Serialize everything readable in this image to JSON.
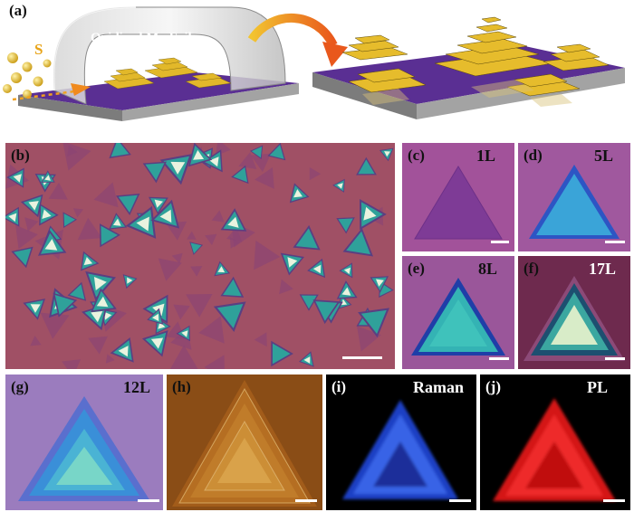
{
  "figure": {
    "panel_a": {
      "label": "(a)",
      "sulfur_label": "S",
      "foil_label": "Oxidized Mo Foil"
    },
    "panel_b": {
      "label": "(b)"
    },
    "panel_c": {
      "label": "(c)",
      "layer_tag": "1L"
    },
    "panel_d": {
      "label": "(d)",
      "layer_tag": "5L"
    },
    "panel_e": {
      "label": "(e)",
      "layer_tag": "8L"
    },
    "panel_f": {
      "label": "(f)",
      "layer_tag": "17L"
    },
    "panel_g": {
      "label": "(g)",
      "layer_tag": "12L"
    },
    "panel_h": {
      "label": "(h)"
    },
    "panel_i": {
      "label": "(i)",
      "mode_tag": "Raman"
    },
    "panel_j": {
      "label": "(j)",
      "mode_tag": "PL"
    }
  },
  "colors": {
    "substrate_purple": "#5a2f93",
    "substrate_gray": "#9a9a9a",
    "sulfur_yellow": "#e8c22a",
    "arrow_orange": "#f08a1e",
    "optical_bg": "#a05065",
    "flake_teal": "#2fa19a",
    "flake_white": "#e9f3df",
    "raman_blue": "#2c4fd0",
    "pl_red": "#e01818",
    "afm_brown": "#8a4d16"
  }
}
